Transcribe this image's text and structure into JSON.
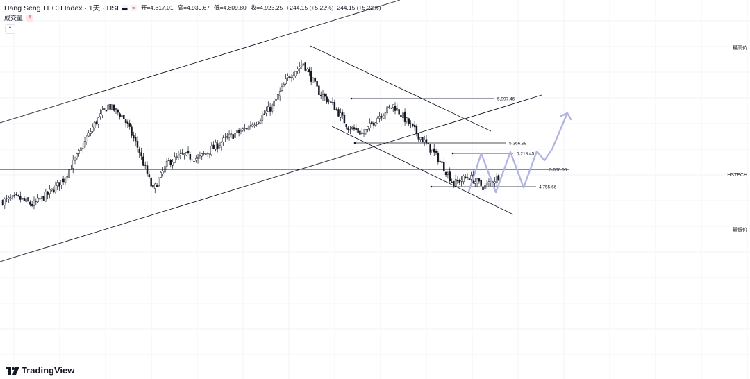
{
  "header": {
    "symbol_title": "Hang Seng TECH Index · 1天 · HSI",
    "open_label": "开",
    "open_value": "4,817.01",
    "high_label": "高",
    "high_value": "4,930.67",
    "low_label": "低",
    "low_value": "4,809.80",
    "close_label": "收",
    "close_value": "4,923.25",
    "change": "+244.15 (+5.22%)",
    "change_repeat": "244.15 (+5.22%)",
    "volume_label": "成交量",
    "volume_warning": "!",
    "collapse_symbol": "^"
  },
  "axis": {
    "high_label": "最高价",
    "symbol_label": "HSTECH",
    "low_label": "最低价"
  },
  "branding": {
    "logo_text": "TradingView"
  },
  "colors": {
    "candle": "#131722",
    "trendline": "#131722",
    "projection": "#b2b5e0",
    "grid": "#f0f3fa"
  },
  "icons": {
    "minus_icon": "minus-icon",
    "wave_icon": "approx-icon",
    "warning_icon": "warning-icon",
    "collapse_icon": "chevron-up-icon",
    "logo_icon": "tradingview-logo-icon"
  },
  "chart_data": {
    "type": "candlestick",
    "title": "Hang Seng TECH Index · 1天 · HSI",
    "ohlc_last": {
      "open": 4817.01,
      "high": 4930.67,
      "low": 4809.8,
      "close": 4923.25
    },
    "change": 244.15,
    "change_pct": 5.22,
    "horizontal_levels": [
      {
        "label": "5,997.46",
        "value": 5997.46
      },
      {
        "label": "5,366.98",
        "value": 5366.98
      },
      {
        "label": "5,218.45",
        "value": 5218.45
      },
      {
        "label": "5,000.00",
        "value": 5000.0
      },
      {
        "label": "4,755.66",
        "value": 4755.66
      }
    ],
    "close_path_approx": [
      4550,
      4600,
      4500,
      4650,
      4850,
      5200,
      5600,
      5900,
      5750,
      5300,
      4700,
      5100,
      5200,
      5150,
      5300,
      5450,
      5550,
      5700,
      5900,
      6300,
      6500,
      6100,
      5900,
      5600,
      5500,
      5750,
      5900,
      5650,
      5400,
      5150,
      4800,
      4900,
      4750,
      4900
    ],
    "projection_path_approx": [
      4900,
      5200,
      4750,
      5250,
      4750,
      5250,
      5050,
      5800
    ],
    "grid": true
  }
}
